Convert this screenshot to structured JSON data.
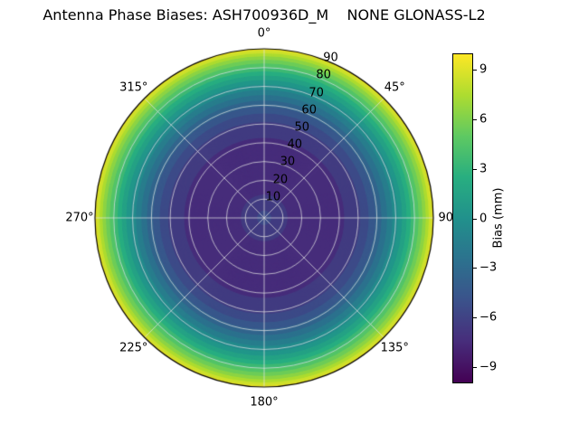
{
  "title": "Antenna Phase Biases: ASH700936D_M    NONE GLONASS-L2",
  "chart_data": {
    "type": "heatmap",
    "subtype": "polar-contour",
    "title": "Antenna Phase Biases: ASH700936D_M    NONE GLONASS-L2",
    "angular_ticks": [
      {
        "deg": 0,
        "label": "0°"
      },
      {
        "deg": 45,
        "label": "45°"
      },
      {
        "deg": 90,
        "label": "90°"
      },
      {
        "deg": 135,
        "label": "135°"
      },
      {
        "deg": 180,
        "label": "180°"
      },
      {
        "deg": 225,
        "label": "225°"
      },
      {
        "deg": 270,
        "label": "270°"
      },
      {
        "deg": 315,
        "label": "315°"
      }
    ],
    "radial_ticks": [
      10,
      20,
      30,
      40,
      50,
      60,
      70,
      80,
      90
    ],
    "radial_label_angle_deg": 22.5,
    "radial_range": [
      0,
      90
    ],
    "symmetry": "values depend only on zenith angle (concentric rings)",
    "bias_profile": {
      "zenith_deg": [
        0,
        10,
        20,
        25,
        30,
        40,
        50,
        55,
        60,
        65,
        70,
        75,
        80,
        85,
        90
      ],
      "bias_mm": [
        -5.5,
        -6.8,
        -7.6,
        -7.8,
        -7.7,
        -7.3,
        -6.2,
        -5.2,
        -3.8,
        -2.2,
        -0.4,
        1.6,
        3.9,
        6.4,
        9.4
      ]
    },
    "contour_step_mm": 1,
    "colorbar": {
      "label": "Bias (mm)",
      "range": [
        -10,
        10
      ],
      "ticks": [
        9,
        6,
        3,
        0,
        -3,
        -6,
        -9
      ],
      "tick_labels": [
        "9",
        "6",
        "3",
        "0",
        "−3",
        "−6",
        "−9"
      ]
    },
    "colormap": {
      "name": "viridis",
      "stops": [
        "#440154",
        "#472d7b",
        "#3b528b",
        "#2c728e",
        "#21918c",
        "#28ae80",
        "#5ec962",
        "#addc30",
        "#fde725"
      ]
    },
    "grid": {
      "visible": true,
      "color_hint": "#dedede"
    }
  }
}
